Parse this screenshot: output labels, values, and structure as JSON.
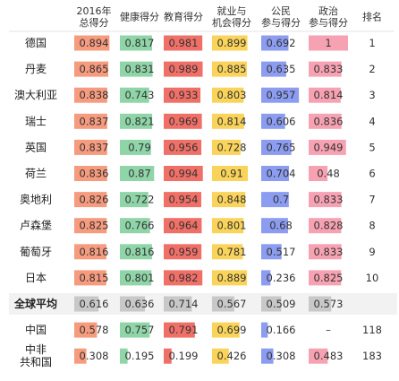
{
  "chart_data": {
    "type": "table",
    "title": "",
    "columns": [
      {
        "key": "overall",
        "label_lines": [
          "2016年",
          "总得分"
        ],
        "color": "#F79B7F"
      },
      {
        "key": "health",
        "label_lines": [
          "健康得分"
        ],
        "color": "#8FD5A8"
      },
      {
        "key": "education",
        "label_lines": [
          "教育得分"
        ],
        "color": "#F07068"
      },
      {
        "key": "employment",
        "label_lines": [
          "就业与",
          "机会得分"
        ],
        "color": "#FAD45A"
      },
      {
        "key": "civic",
        "label_lines": [
          "公民",
          "参与得分"
        ],
        "color": "#8C9CF0"
      },
      {
        "key": "political",
        "label_lines": [
          "政治",
          "参与得分"
        ],
        "color": "#F7A2B3"
      }
    ],
    "rank_header": "排名",
    "rows": [
      {
        "name_lines": [
          "德国"
        ],
        "values": [
          "0.894",
          "0.817",
          "0.981",
          "0.899",
          "0.692",
          "1"
        ],
        "rank": "1"
      },
      {
        "name_lines": [
          "丹麦"
        ],
        "values": [
          "0.865",
          "0.831",
          "0.989",
          "0.885",
          "0.635",
          "0.833"
        ],
        "rank": "2"
      },
      {
        "name_lines": [
          "澳大利亚"
        ],
        "values": [
          "0.838",
          "0.743",
          "0.933",
          "0.803",
          "0.957",
          "0.814"
        ],
        "rank": "3"
      },
      {
        "name_lines": [
          "瑞士"
        ],
        "values": [
          "0.837",
          "0.821",
          "0.969",
          "0.814",
          "0.606",
          "0.836"
        ],
        "rank": "4"
      },
      {
        "name_lines": [
          "英国"
        ],
        "values": [
          "0.837",
          "0.79",
          "0.956",
          "0.728",
          "0.765",
          "0.949"
        ],
        "rank": "5"
      },
      {
        "name_lines": [
          "荷兰"
        ],
        "values": [
          "0.836",
          "0.87",
          "0.994",
          "0.91",
          "0.704",
          "0.48"
        ],
        "rank": "6"
      },
      {
        "name_lines": [
          "奥地利"
        ],
        "values": [
          "0.826",
          "0.722",
          "0.954",
          "0.848",
          "0.7",
          "0.833"
        ],
        "rank": "7"
      },
      {
        "name_lines": [
          "卢森堡"
        ],
        "values": [
          "0.825",
          "0.766",
          "0.964",
          "0.801",
          "0.68",
          "0.828"
        ],
        "rank": "8"
      },
      {
        "name_lines": [
          "葡萄牙"
        ],
        "values": [
          "0.816",
          "0.816",
          "0.959",
          "0.781",
          "0.517",
          "0.833"
        ],
        "rank": "9"
      },
      {
        "name_lines": [
          "日本"
        ],
        "values": [
          "0.815",
          "0.801",
          "0.982",
          "0.889",
          "0.236",
          "0.825"
        ],
        "rank": "10"
      },
      {
        "name_lines": [
          "全球平均"
        ],
        "values": [
          "0.616",
          "0.636",
          "0.714",
          "0.567",
          "0.509",
          "0.573"
        ],
        "rank": "",
        "is_average": true
      },
      {
        "name_lines": [
          "中国"
        ],
        "values": [
          "0.578",
          "0.757",
          "0.791",
          "0.699",
          "0.166",
          "–"
        ],
        "rank": "118"
      },
      {
        "name_lines": [
          "中非",
          "共和国"
        ],
        "values": [
          "0.308",
          "0.195",
          "0.199",
          "0.426",
          "0.308",
          "0.483"
        ],
        "rank": "183"
      }
    ],
    "average_color": "#C8C8C8",
    "stripe_color": "#F2F2F2"
  }
}
